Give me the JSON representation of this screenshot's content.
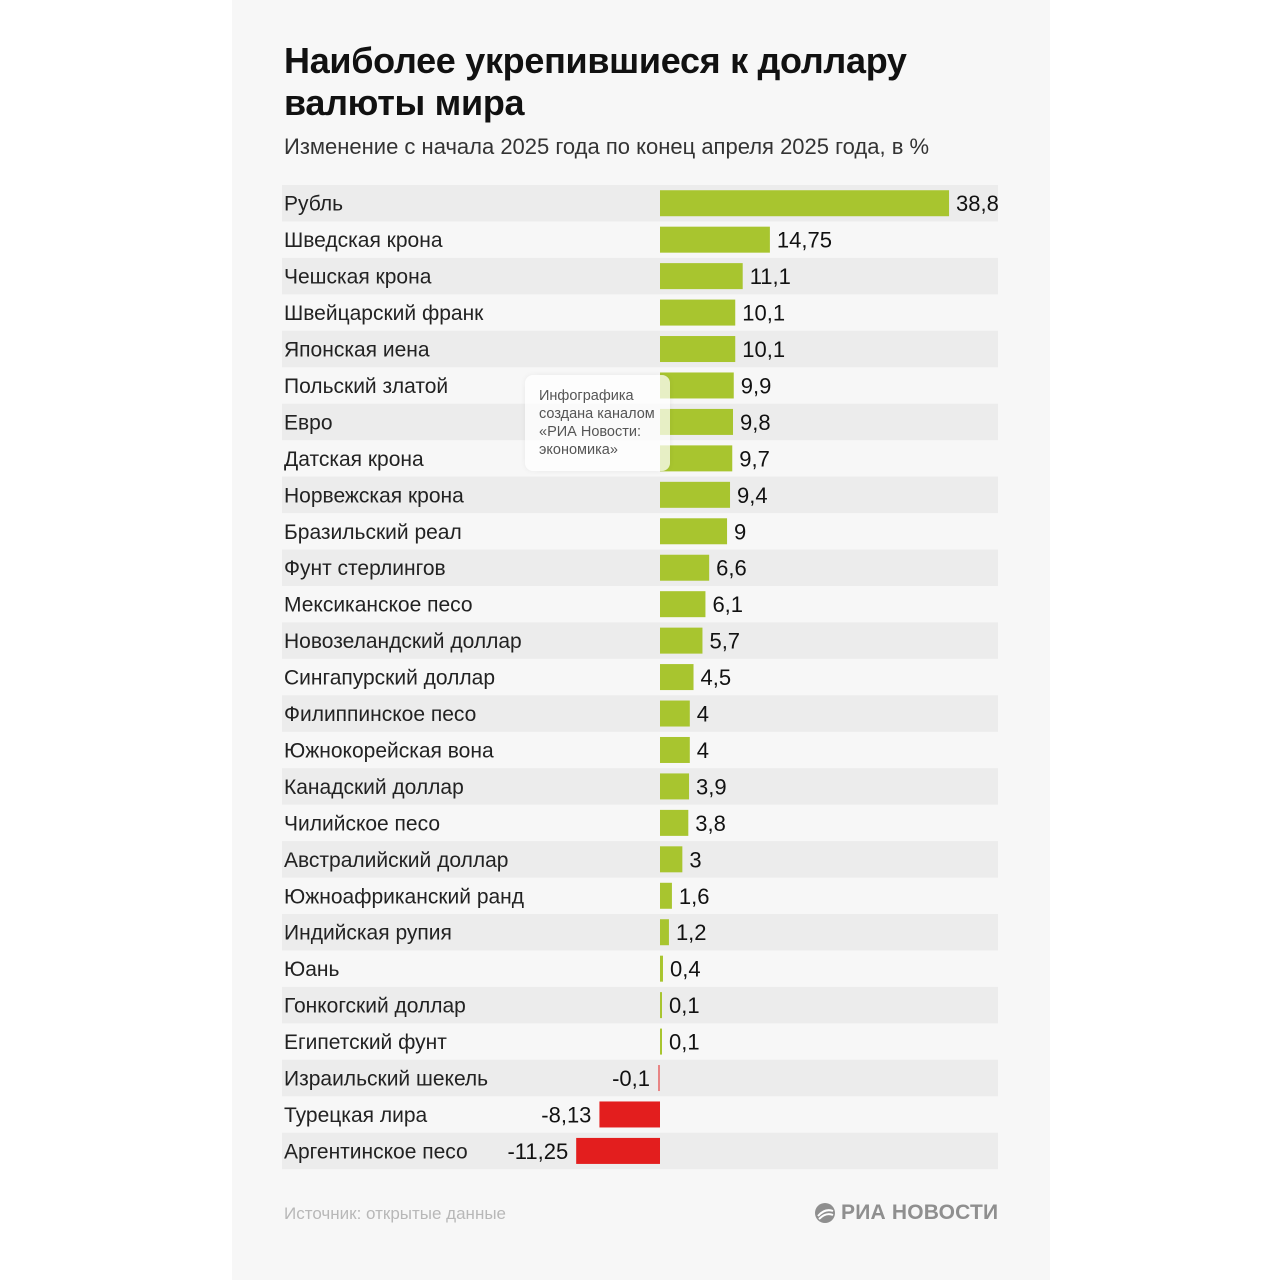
{
  "title": "Наиболее укрепившиеся к доллару валюты мира",
  "subtitle": "Изменение с начала 2025 года по конец апреля 2025 года, в %",
  "watermark": [
    "Инфографика",
    "создана каналом",
    "«РИА Новости:",
    "экономика»"
  ],
  "source": "Источник: открытые данные",
  "logo": {
    "text": "РИА НОВОСТИ",
    "icon": "ria-novosti-logo-icon"
  },
  "colors": {
    "positive": "#a8c52f",
    "negative": "#e31e1e",
    "row_stripe": "#ececec",
    "background": "#f7f7f7"
  },
  "chart_data": {
    "type": "bar",
    "orientation": "horizontal",
    "categories": [
      "Рубль",
      "Шведская крона",
      "Чешская крона",
      "Швейцарский франк",
      "Японская иена",
      "Польский златой",
      "Евро",
      "Датская крона",
      "Норвежская крона",
      "Бразильский реал",
      "Фунт стерлингов",
      "Мексиканское песо",
      "Новозеландский доллар",
      "Сингапурский доллар",
      "Филиппинское песо",
      "Южнокорейская вона",
      "Канадский доллар",
      "Чилийское песо",
      "Австралийский доллар",
      "Южноафриканский ранд",
      "Индийская рупия",
      "Юань",
      "Гонкогский доллар",
      "Египетский фунт",
      "Израильский шекель",
      "Турецкая лира",
      "Аргентинское песо"
    ],
    "values": [
      38.8,
      14.75,
      11.1,
      10.1,
      10.1,
      9.9,
      9.8,
      9.7,
      9.4,
      9,
      6.6,
      6.1,
      5.7,
      4.5,
      4,
      4,
      3.9,
      3.8,
      3,
      1.6,
      1.2,
      0.4,
      0.1,
      0.1,
      -0.1,
      -8.13,
      -11.25
    ],
    "value_labels": [
      "38,8",
      "14,75",
      "11,1",
      "10,1",
      "10,1",
      "9,9",
      "9,8",
      "9,7",
      "9,4",
      "9",
      "6,6",
      "6,1",
      "5,7",
      "4,5",
      "4",
      "4",
      "3,9",
      "3,8",
      "3",
      "1,6",
      "1,2",
      "0,4",
      "0,1",
      "0,1",
      "-0,1",
      "-8,13",
      "-11,25"
    ],
    "title": "Наиболее укрепившиеся к доллару валюты мира",
    "subtitle": "Изменение с начала 2025 года по конец апреля 2025 года, в %",
    "xlabel": "",
    "ylabel": "",
    "grid": false,
    "legend": "none"
  }
}
